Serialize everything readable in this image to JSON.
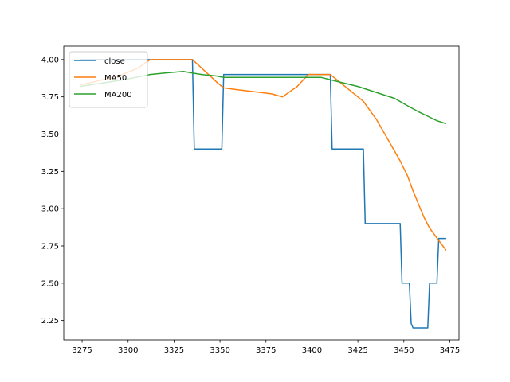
{
  "chart_data": {
    "type": "line",
    "title": "",
    "xlabel": "",
    "ylabel": "",
    "xlim": [
      3265,
      3480
    ],
    "ylim": [
      2.12,
      4.09
    ],
    "xticks": [
      3275,
      3300,
      3325,
      3350,
      3375,
      3400,
      3425,
      3450,
      3475
    ],
    "xtick_labels": [
      "3275",
      "3300",
      "3325",
      "3350",
      "3375",
      "3400",
      "3425",
      "3450",
      "3475"
    ],
    "yticks": [
      2.25,
      2.5,
      2.75,
      3.0,
      3.25,
      3.5,
      3.75,
      4.0
    ],
    "ytick_labels": [
      "2.25",
      "2.50",
      "2.75",
      "3.00",
      "3.25",
      "3.50",
      "3.75",
      "4.00"
    ],
    "grid": false,
    "legend_position": "top-left",
    "series": [
      {
        "name": "close",
        "color": "#1f77b4",
        "x": [
          3274,
          3335,
          3336,
          3351,
          3352,
          3410,
          3411,
          3428,
          3429,
          3448,
          3449,
          3453,
          3454,
          3455,
          3456,
          3463,
          3464,
          3468,
          3469,
          3473
        ],
        "y": [
          4.0,
          4.0,
          3.4,
          3.4,
          3.9,
          3.9,
          3.4,
          3.4,
          2.9,
          2.9,
          2.5,
          2.5,
          2.23,
          2.2,
          2.2,
          2.2,
          2.5,
          2.5,
          2.8,
          2.8
        ]
      },
      {
        "name": "MA50",
        "color": "#ff7f0e",
        "x": [
          3274,
          3295,
          3305,
          3312,
          3335,
          3342,
          3349,
          3352,
          3358,
          3365,
          3372,
          3378,
          3384,
          3392,
          3398,
          3410,
          3428,
          3435,
          3442,
          3448,
          3452,
          3455,
          3458,
          3461,
          3464,
          3467,
          3470,
          3473
        ],
        "y": [
          3.83,
          3.89,
          3.94,
          4.0,
          4.0,
          3.92,
          3.84,
          3.81,
          3.8,
          3.79,
          3.78,
          3.77,
          3.75,
          3.82,
          3.9,
          3.9,
          3.72,
          3.6,
          3.45,
          3.32,
          3.22,
          3.12,
          3.03,
          2.94,
          2.87,
          2.82,
          2.77,
          2.72
        ]
      },
      {
        "name": "MA200",
        "color": "#2ca02c",
        "x": [
          3274,
          3285,
          3300,
          3312,
          3320,
          3330,
          3335,
          3340,
          3348,
          3352,
          3370,
          3405,
          3415,
          3425,
          3435,
          3445,
          3452,
          3458,
          3463,
          3468,
          3473
        ],
        "y": [
          3.82,
          3.84,
          3.87,
          3.9,
          3.91,
          3.92,
          3.91,
          3.9,
          3.89,
          3.88,
          3.88,
          3.88,
          3.85,
          3.82,
          3.78,
          3.74,
          3.69,
          3.65,
          3.62,
          3.59,
          3.57
        ]
      }
    ]
  }
}
